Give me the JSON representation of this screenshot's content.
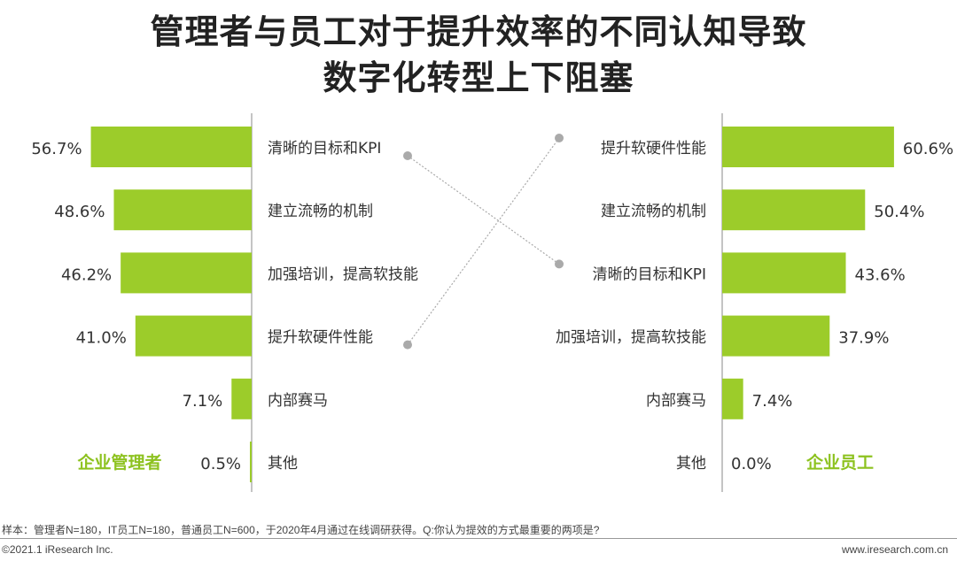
{
  "title": {
    "line1": "管理者与员工对于提升效率的不同认知导致",
    "line2": "数字化转型上下阻塞"
  },
  "colors": {
    "bar": "#9ccc2a",
    "legend_text": "#8dc21f",
    "connector": "#aaaaaa"
  },
  "chart_data": [
    {
      "type": "bar",
      "orientation": "horizontal",
      "direction": "leftward",
      "legend_label": "企业管理者",
      "categories": [
        "清晰的目标和KPI",
        "建立流畅的机制",
        "加强培训，提高软技能",
        "提升软硬件性能",
        "内部赛马",
        "其他"
      ],
      "values": [
        56.7,
        48.6,
        46.2,
        41.0,
        7.1,
        0.5
      ],
      "value_labels": [
        "56.7%",
        "48.6%",
        "46.2%",
        "41.0%",
        "7.1%",
        "0.5%"
      ],
      "unit": "%"
    },
    {
      "type": "bar",
      "orientation": "horizontal",
      "direction": "rightward",
      "legend_label": "企业员工",
      "categories": [
        "提升软硬件性能",
        "建立流畅的机制",
        "清晰的目标和KPI",
        "加强培训，提高软技能",
        "内部赛马",
        "其他"
      ],
      "values": [
        60.6,
        50.4,
        43.6,
        37.9,
        7.4,
        0.0
      ],
      "value_labels": [
        "60.6%",
        "50.4%",
        "43.6%",
        "37.9%",
        "7.4%",
        "0.0%"
      ],
      "unit": "%"
    }
  ],
  "connectors": [
    {
      "from": "清晰的目标和KPI",
      "to": "清晰的目标和KPI"
    },
    {
      "from": "提升软硬件性能",
      "to": "提升软硬件性能"
    }
  ],
  "footer": {
    "note": "样本：管理者N=180，IT员工N=180，普通员工N=600，于2020年4月通过在线调研获得。Q:你认为提效的方式最重要的两项是?",
    "copyright": "©2021.1 iResearch Inc.",
    "website": "www.iresearch.com.cn"
  }
}
